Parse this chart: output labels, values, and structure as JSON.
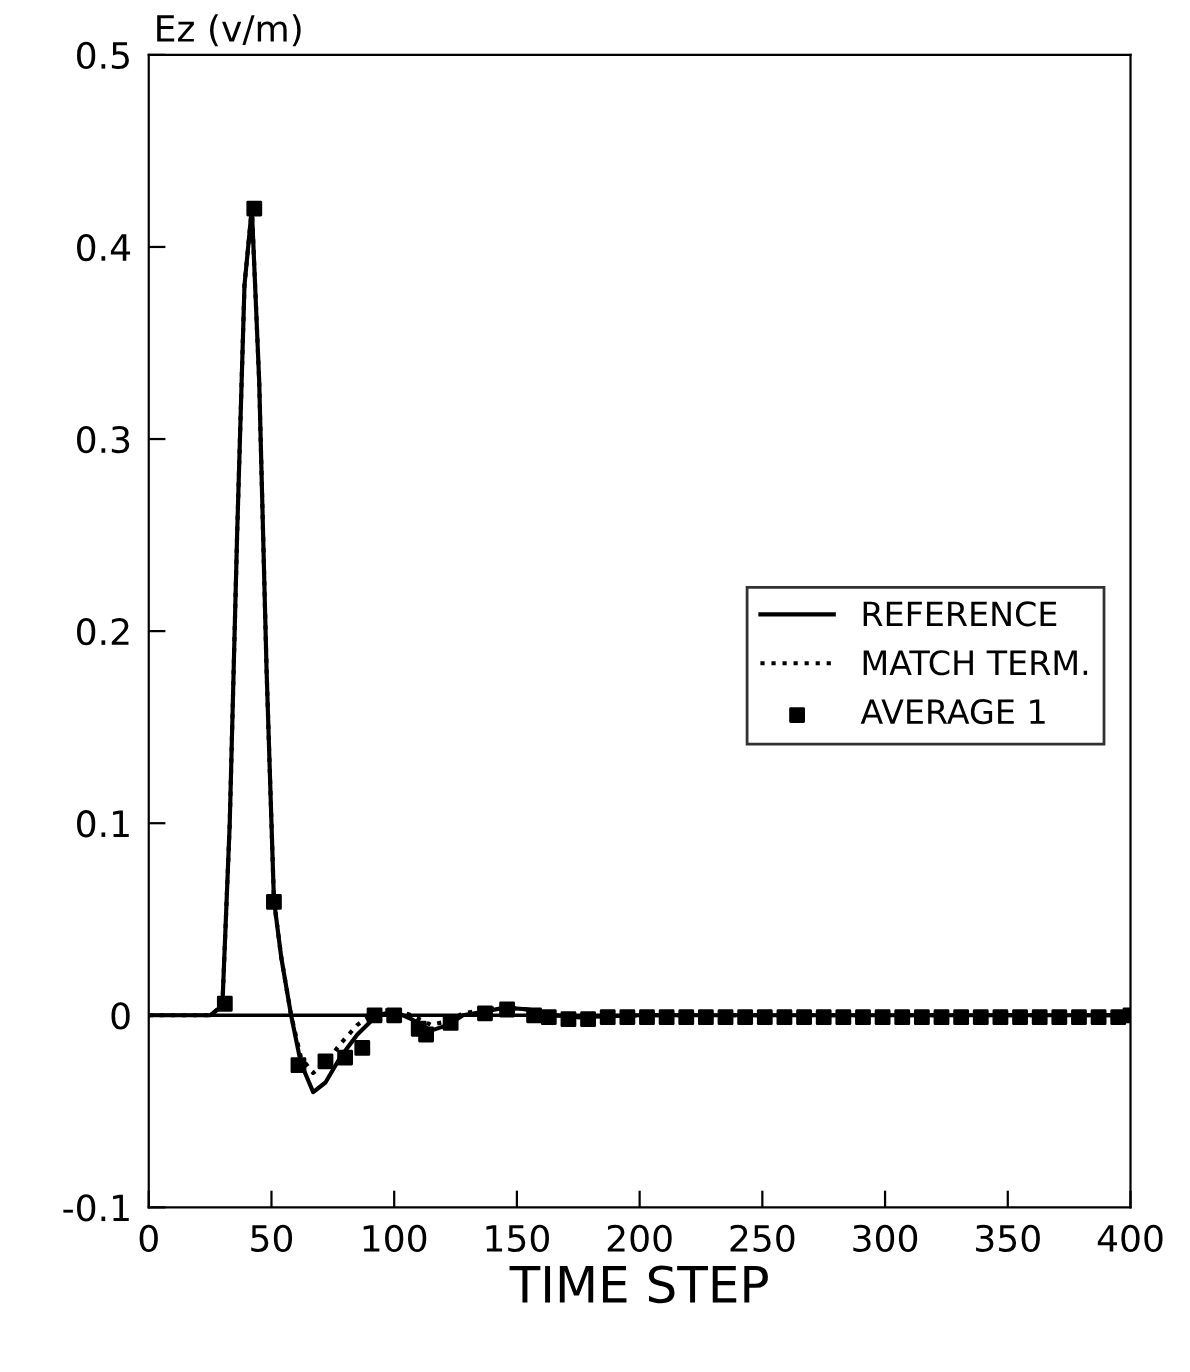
{
  "chart_data": {
    "type": "line",
    "xlabel": "TIME STEP",
    "ylabel": "Ez (v/m)",
    "xlim": [
      0,
      400
    ],
    "xticks": [
      0,
      50,
      100,
      150,
      200,
      250,
      300,
      350,
      400
    ],
    "ylim": [
      -0.1,
      0.5
    ],
    "yticks": [
      -0.1,
      0,
      0.1,
      0.2,
      0.3,
      0.4,
      0.5
    ],
    "grid": false,
    "legend": "right",
    "ref_lines": [
      {
        "axis": "y",
        "value": 0,
        "color": "#000000",
        "line_style": "solid"
      }
    ],
    "series": [
      {
        "name": "REFERENCE",
        "color": "#000000",
        "line_style": "solid",
        "marker": "none",
        "x": [
          0,
          25,
          30,
          33,
          36,
          39,
          42,
          45,
          48,
          51,
          54,
          58,
          62,
          67,
          72,
          78,
          85,
          93,
          100,
          107,
          115,
          122,
          128,
          137,
          145,
          155,
          165,
          175,
          200,
          400
        ],
        "values": [
          0,
          0,
          0.005,
          0.1,
          0.25,
          0.38,
          0.42,
          0.33,
          0.18,
          0.06,
          0.03,
          0,
          -0.025,
          -0.04,
          -0.035,
          -0.022,
          -0.01,
          0,
          0.002,
          -0.002,
          -0.008,
          -0.005,
          0,
          0.002,
          0.004,
          0.003,
          0,
          -0.001,
          0,
          0
        ]
      },
      {
        "name": "MATCH TERM.",
        "color": "#000000",
        "line_style": "dotted",
        "marker": "none",
        "x": [
          0,
          25,
          30,
          33,
          36,
          39,
          42,
          45,
          48,
          51,
          54,
          58,
          62,
          67,
          72,
          78,
          85,
          93,
          100,
          107,
          115,
          122,
          128,
          137,
          145,
          155,
          165,
          175,
          200,
          400
        ],
        "values": [
          0,
          0,
          0.005,
          0.1,
          0.25,
          0.38,
          0.42,
          0.33,
          0.18,
          0.06,
          0.03,
          0,
          -0.022,
          -0.03,
          -0.025,
          -0.015,
          -0.005,
          0.002,
          0.003,
          0.0,
          -0.005,
          -0.003,
          0.001,
          0.003,
          0.004,
          0.003,
          0,
          -0.001,
          0,
          0
        ]
      },
      {
        "name": "AVERAGE 1",
        "type": "scatter",
        "color": "#000000",
        "marker": "square",
        "x": [
          31,
          43,
          51,
          61,
          72,
          80,
          87,
          92,
          100,
          110,
          113,
          123,
          137,
          146,
          157,
          163,
          171,
          179,
          187,
          195,
          203,
          211,
          219,
          227,
          235,
          243,
          251,
          259,
          267,
          275,
          283,
          291,
          299,
          307,
          315,
          323,
          331,
          339,
          347,
          355,
          363,
          371,
          379,
          387,
          395,
          400
        ],
        "values": [
          0.006,
          0.42,
          0.059,
          -0.026,
          -0.024,
          -0.022,
          -0.017,
          0.0,
          0.0,
          -0.007,
          -0.01,
          -0.004,
          0.001,
          0.003,
          0.0,
          -0.001,
          -0.002,
          -0.002,
          -0.001,
          -0.001,
          -0.001,
          -0.001,
          -0.001,
          -0.001,
          -0.001,
          -0.001,
          -0.001,
          -0.001,
          -0.001,
          -0.001,
          -0.001,
          -0.001,
          -0.001,
          -0.001,
          -0.001,
          -0.001,
          -0.001,
          -0.001,
          -0.001,
          -0.001,
          -0.001,
          -0.001,
          -0.001,
          -0.001,
          -0.001,
          0.0
        ]
      }
    ]
  }
}
